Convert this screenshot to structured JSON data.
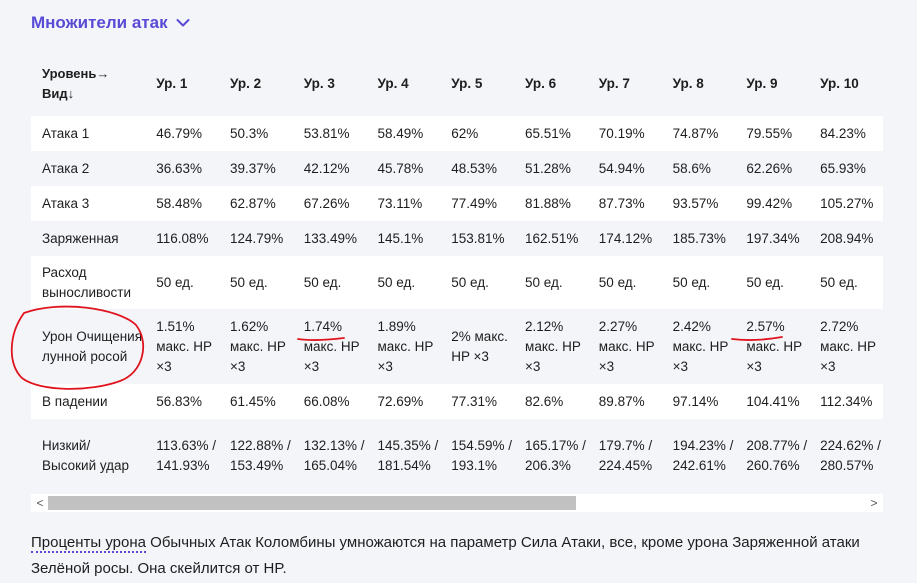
{
  "section": {
    "title": "Множители атак",
    "toggle_icon": "chevron-down-icon",
    "accent_color": "#5a4bd6"
  },
  "table": {
    "corner_header_line1": "Уровень→",
    "corner_header_line2": "Вид↓",
    "levels": [
      "Ур. 1",
      "Ур. 2",
      "Ур. 3",
      "Ур. 4",
      "Ур. 5",
      "Ур. 6",
      "Ур. 7",
      "Ур. 8",
      "Ур. 9",
      "Ур. 10"
    ],
    "rows": [
      {
        "label": "Атака 1",
        "cells": [
          "46.79%",
          "50.3%",
          "53.81%",
          "58.49%",
          "62%",
          "65.51%",
          "70.19%",
          "74.87%",
          "79.55%",
          "84.23%"
        ]
      },
      {
        "label": "Атака 2",
        "cells": [
          "36.63%",
          "39.37%",
          "42.12%",
          "45.78%",
          "48.53%",
          "51.28%",
          "54.94%",
          "58.6%",
          "62.26%",
          "65.93%"
        ]
      },
      {
        "label": "Атака 3",
        "cells": [
          "58.48%",
          "62.87%",
          "67.26%",
          "73.11%",
          "77.49%",
          "81.88%",
          "87.73%",
          "93.57%",
          "99.42%",
          "105.27%"
        ]
      },
      {
        "label": "Заряженная",
        "cells": [
          "116.08%",
          "124.79%",
          "133.49%",
          "145.1%",
          "153.81%",
          "162.51%",
          "174.12%",
          "185.73%",
          "197.34%",
          "208.94%"
        ]
      },
      {
        "label": "Расход выносливости",
        "cells": [
          "50 ед.",
          "50 ед.",
          "50 ед.",
          "50 ед.",
          "50 ед.",
          "50 ед.",
          "50 ед.",
          "50 ед.",
          "50 ед.",
          "50 ед."
        ]
      },
      {
        "label": "Урон Очищения лунной росой",
        "cells": [
          "1.51% макс. HP ×3",
          "1.62% макс. HP ×3",
          "1.74% макс. HP ×3",
          "1.89% макс. HP ×3",
          "2% макс. HP ×3",
          "2.12% макс. HP ×3",
          "2.27% макс. HP ×3",
          "2.42% макс. HP ×3",
          "2.57% макс. HP ×3",
          "2.72% макс. HP ×3"
        ]
      },
      {
        "label": "В падении",
        "cells": [
          "56.83%",
          "61.45%",
          "66.08%",
          "72.69%",
          "77.31%",
          "82.6%",
          "89.87%",
          "97.14%",
          "104.41%",
          "112.34%"
        ]
      },
      {
        "label": "Низкий/ Высокий удар",
        "cells": [
          "113.63% / 141.93%",
          "122.88% / 153.49%",
          "132.13% / 165.04%",
          "145.35% / 181.54%",
          "154.59% / 193.1%",
          "165.17% / 206.3%",
          "179.7% / 224.45%",
          "194.23% / 242.61%",
          "208.77% / 260.76%",
          "224.62% / 280.57%"
        ]
      }
    ]
  },
  "scrollbar": {
    "left_icon": "scroll-left-icon",
    "right_icon": "scroll-right-icon",
    "left_glyph": "<",
    "right_glyph": ">"
  },
  "note": {
    "lead": "Проценты урона",
    "text": " Обычных Атак Коломбины умножаются на параметр Сила Атаки, все, кроме урона Заряженной атаки Зелёной росы. Она скейлится от HP."
  },
  "annotation_color": "#e0141e"
}
